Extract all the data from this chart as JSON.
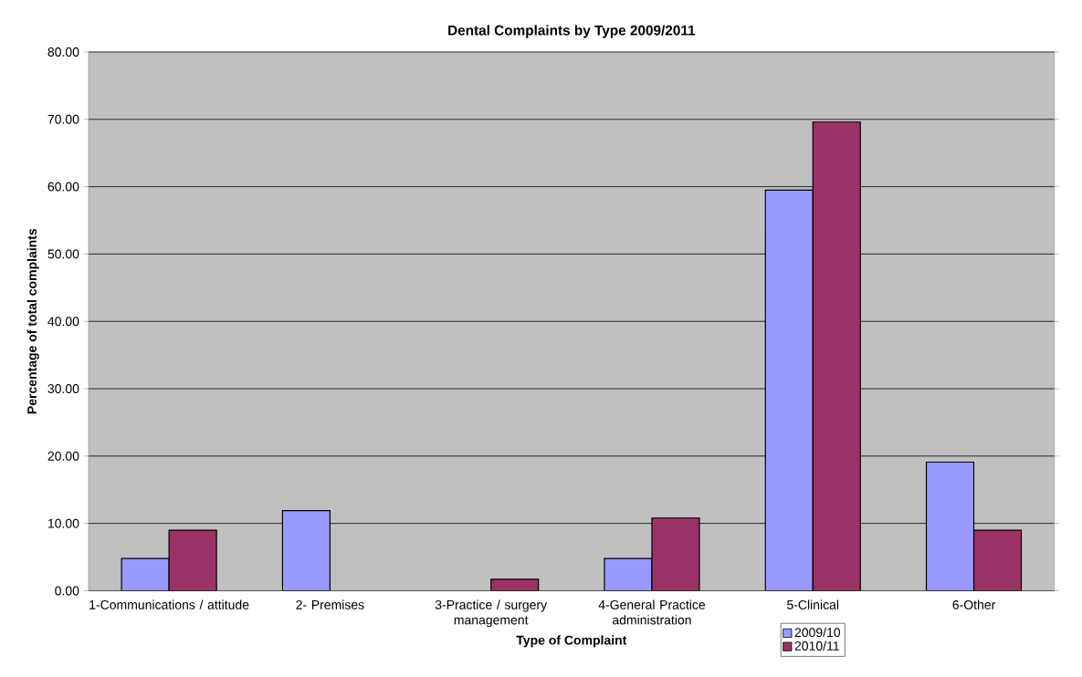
{
  "chart_data": {
    "type": "bar",
    "title": "Dental Complaints by Type 2009/2011",
    "xlabel": "Type of Complaint",
    "ylabel": "Percentage of total complaints",
    "categories": [
      "1-Communications / attitude",
      "2- Premises",
      "3-Practice / surgery management",
      "4-General Practice administration",
      "5-Clinical",
      "6-Other"
    ],
    "series": [
      {
        "name": "2009/10",
        "color": "#9999ff",
        "values": [
          4.8,
          11.9,
          null,
          4.8,
          59.5,
          19.1
        ]
      },
      {
        "name": "2010/11",
        "color": "#993366",
        "values": [
          9.0,
          null,
          1.7,
          10.8,
          69.6,
          9.0
        ]
      }
    ],
    "ylim": [
      0,
      80
    ],
    "yticks": [
      {
        "value": 0,
        "label": "0.00"
      },
      {
        "value": 10,
        "label": "10.00"
      },
      {
        "value": 20,
        "label": "20.00"
      },
      {
        "value": 30,
        "label": "30.00"
      },
      {
        "value": 40,
        "label": "40.00"
      },
      {
        "value": 50,
        "label": "50.00"
      },
      {
        "value": 60,
        "label": "60.00"
      },
      {
        "value": 70,
        "label": "70.00"
      },
      {
        "value": 80,
        "label": "80.00"
      }
    ],
    "grid": "y",
    "legend": "bottom"
  }
}
